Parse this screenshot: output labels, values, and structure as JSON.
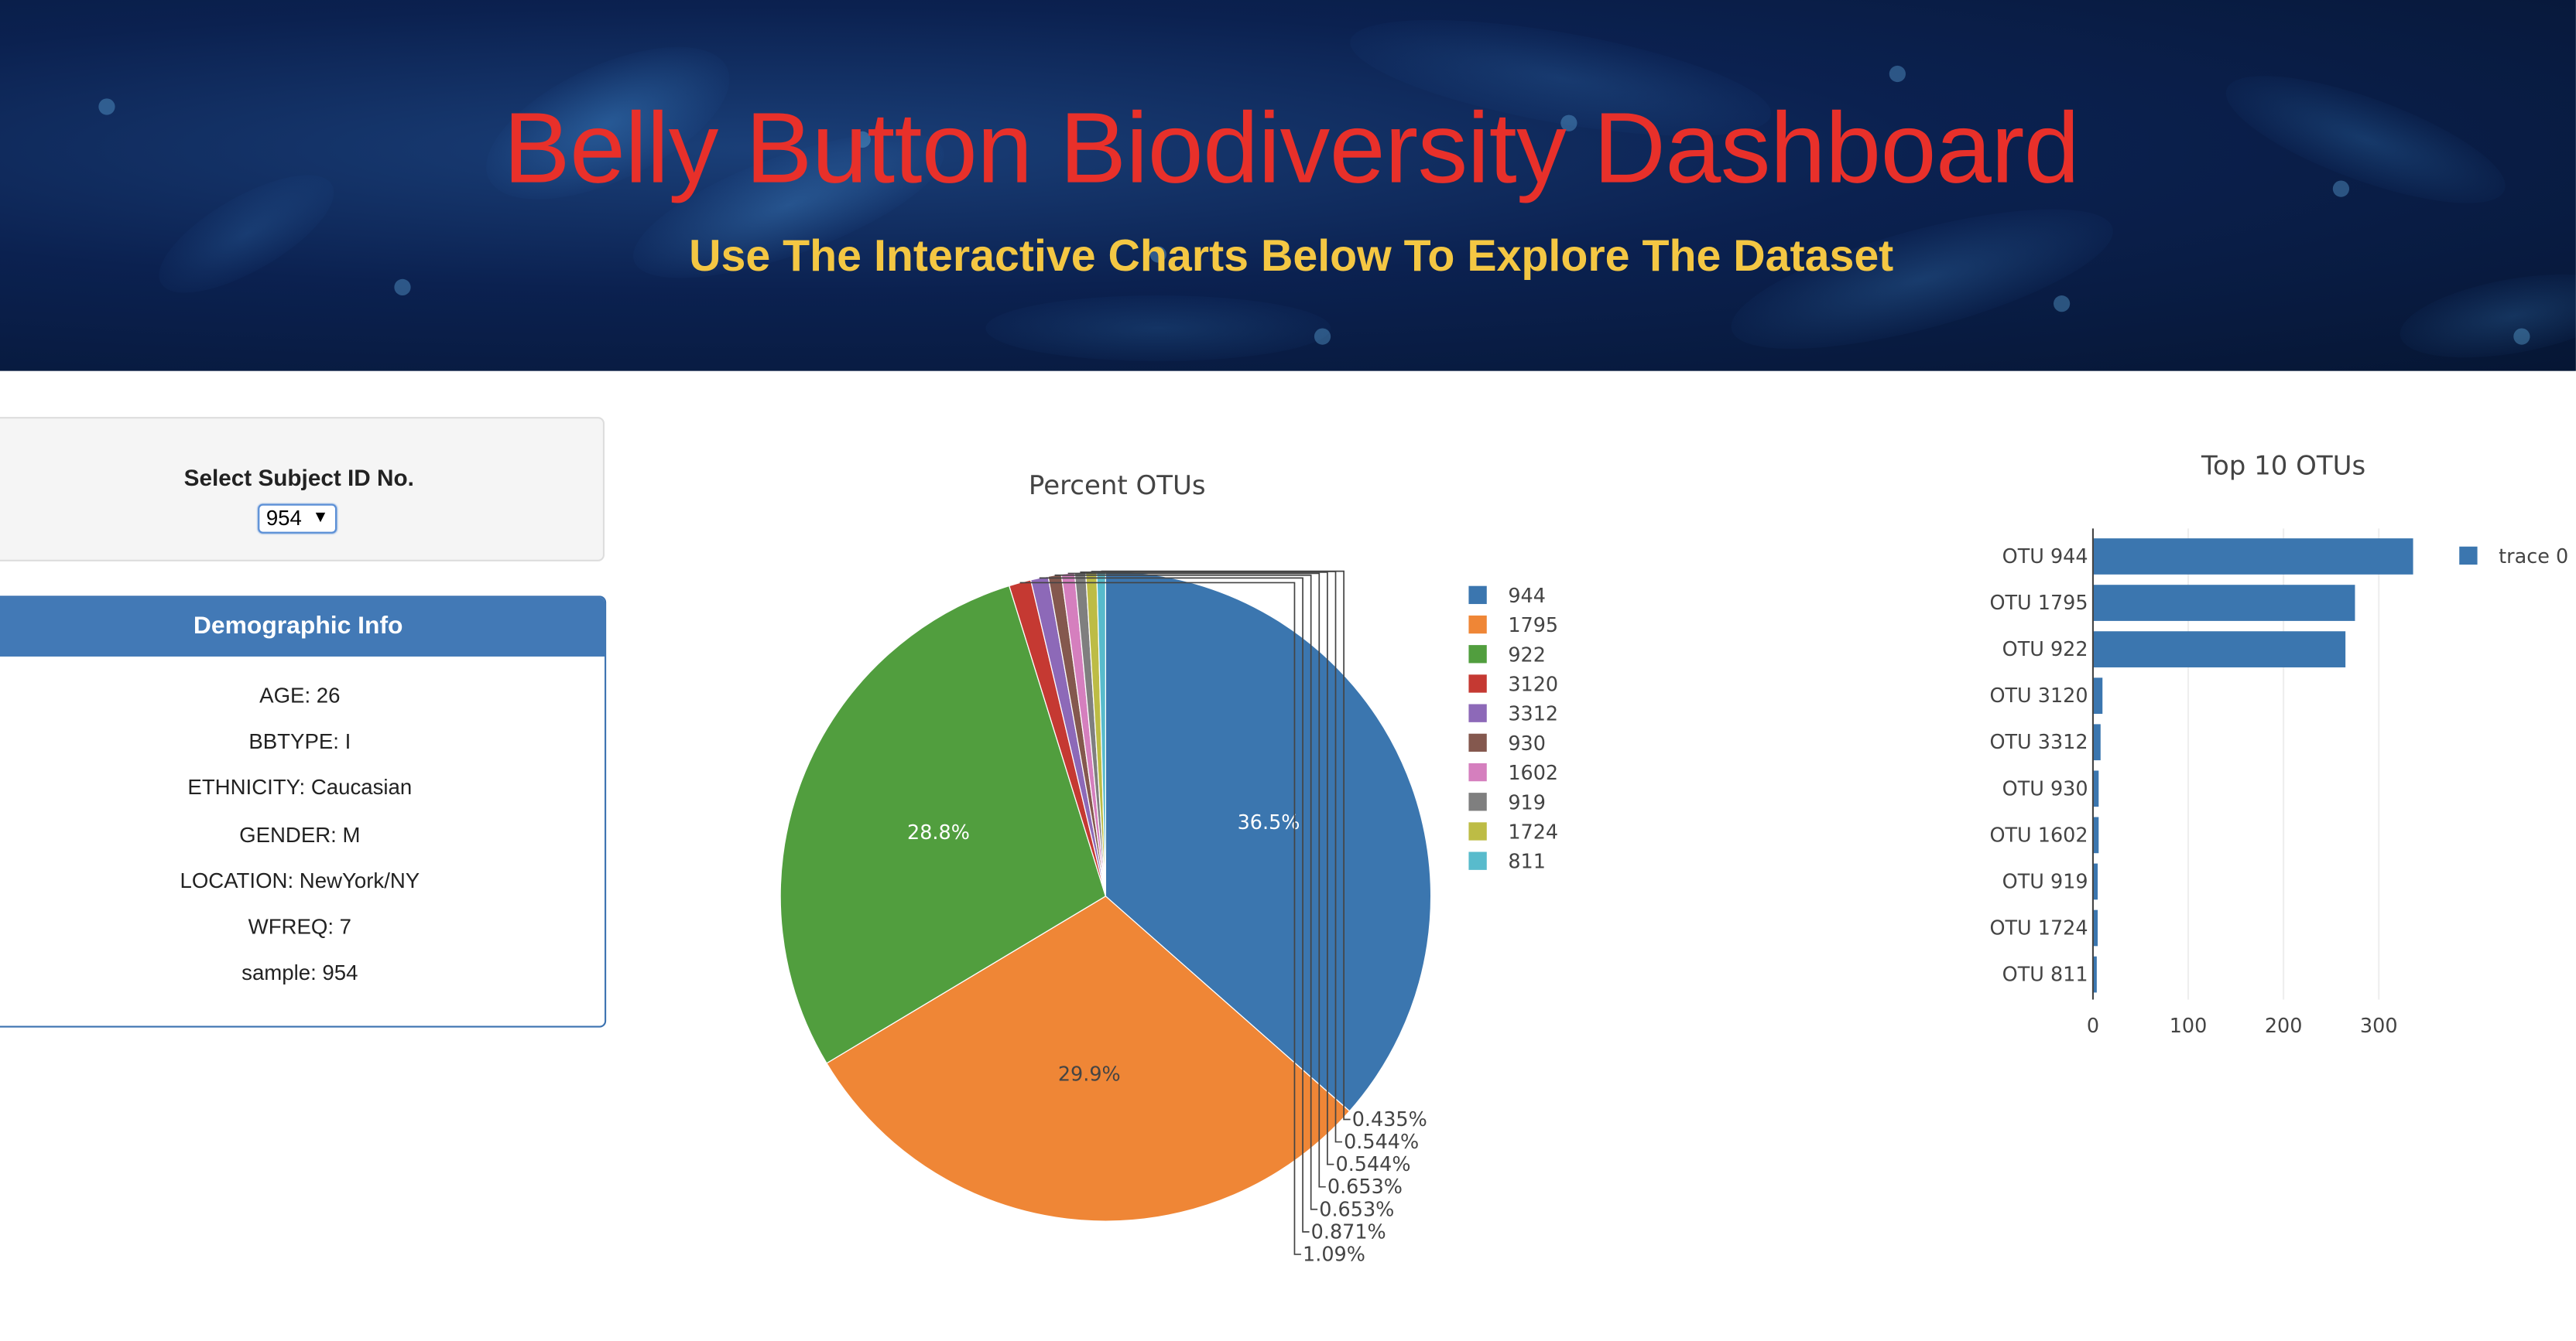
{
  "header": {
    "title": "Belly Button Biodiversity Dashboard",
    "subtitle": "Use The Interactive Charts Below To Explore The Dataset",
    "background_colors": [
      "#061634",
      "#0b2150",
      "#1a3f78",
      "#2a6bb0"
    ]
  },
  "selector": {
    "label": "Select Subject ID No.",
    "selected_value": "954",
    "chevron_icon": "chevron-down-icon"
  },
  "demographics": {
    "heading": "Demographic Info",
    "lines": [
      "AGE: 26",
      "BBTYPE: I",
      "ETHNICITY: Caucasian",
      "GENDER: M",
      "LOCATION: NewYork/NY",
      "WFREQ: 7",
      "sample: 954"
    ]
  },
  "chart_data": [
    {
      "type": "pie",
      "title": "Percent OTUs",
      "labels": [
        "944",
        "1795",
        "922",
        "3120",
        "3312",
        "930",
        "1602",
        "919",
        "1724",
        "811"
      ],
      "values": [
        36.5,
        29.9,
        28.8,
        1.09,
        0.871,
        0.653,
        0.653,
        0.544,
        0.544,
        0.435
      ],
      "slice_labels": [
        "36.5%",
        "29.9%",
        "28.8%",
        "1.09%",
        "0.871%",
        "0.653%",
        "0.653%",
        "0.544%",
        "0.544%",
        "0.435%"
      ],
      "colors": [
        "#3b76af",
        "#ef8636",
        "#519e3e",
        "#c53932",
        "#8d69b8",
        "#84584e",
        "#d57fbe",
        "#7f7f7f",
        "#bdbc45",
        "#58bbcc"
      ],
      "legend_position": "right"
    },
    {
      "type": "bar",
      "orientation": "horizontal",
      "title": "Top 10 OTUs",
      "categories": [
        "OTU 944",
        "OTU 1795",
        "OTU 922",
        "OTU 3120",
        "OTU 3312",
        "OTU 930",
        "OTU 1602",
        "OTU 919",
        "OTU 1724",
        "OTU 811"
      ],
      "series": [
        {
          "name": "trace 0",
          "values": [
            336,
            275,
            265,
            10,
            8,
            6,
            6,
            5,
            5,
            4
          ],
          "color": "#3b76af"
        }
      ],
      "x_ticks": [
        "0",
        "100",
        "200",
        "300"
      ],
      "xlim": [
        0,
        350
      ],
      "legend_position": "top-right",
      "grid": true
    }
  ]
}
